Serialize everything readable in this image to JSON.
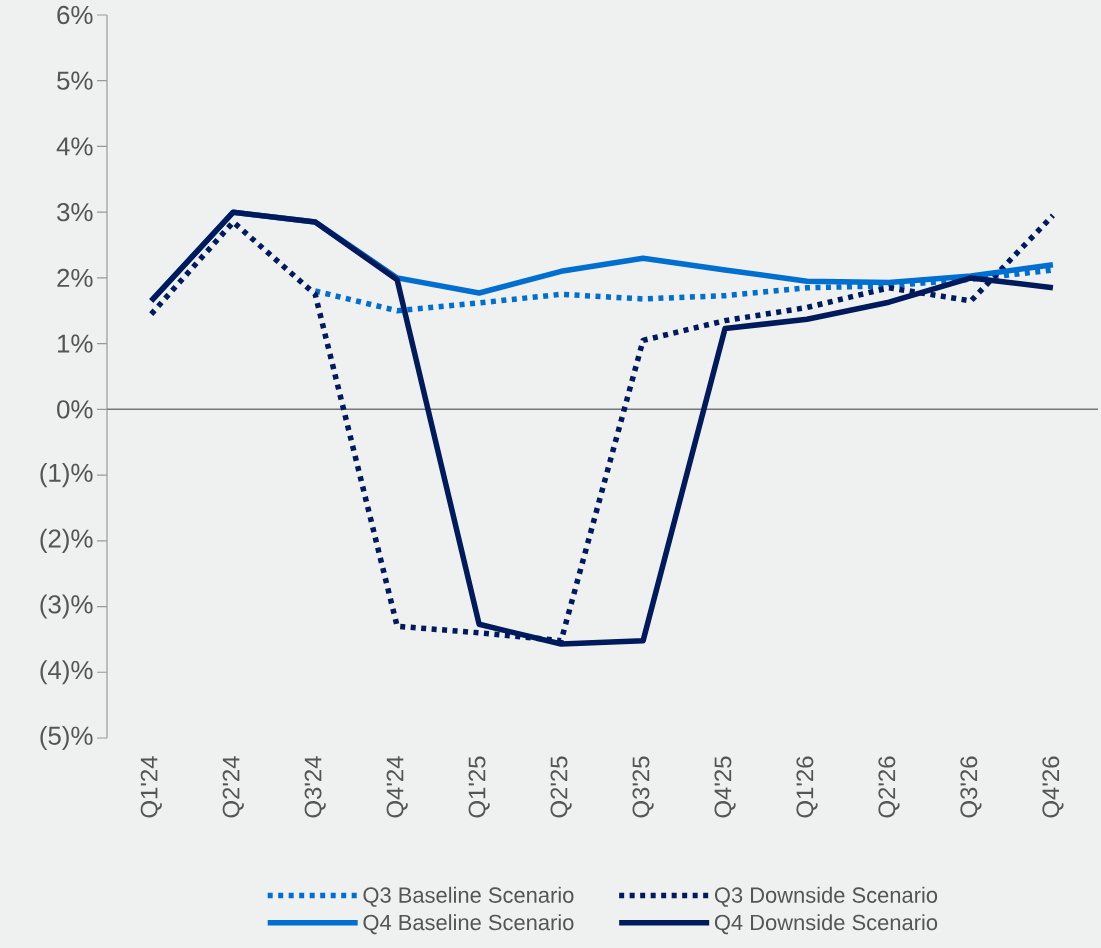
{
  "chart_data": {
    "type": "line",
    "categories": [
      "Q1'24",
      "Q2'24",
      "Q3'24",
      "Q4'24",
      "Q1'25",
      "Q2'25",
      "Q3'25",
      "Q4'25",
      "Q1'26",
      "Q2'26",
      "Q3'26",
      "Q4'26"
    ],
    "series": [
      {
        "name": "Q3 Baseline Scenario",
        "color": "#006fd0",
        "line_style": "dotted",
        "values": [
          null,
          null,
          1.8,
          1.5,
          1.62,
          1.75,
          1.68,
          1.73,
          1.85,
          1.88,
          1.98,
          2.12
        ]
      },
      {
        "name": "Q3 Downside Scenario",
        "color": "#001a5c",
        "line_style": "dotted",
        "values": [
          1.45,
          2.85,
          1.75,
          -3.3,
          -3.4,
          -3.52,
          1.05,
          1.35,
          1.55,
          1.85,
          1.65,
          2.95
        ]
      },
      {
        "name": "Q4 Baseline Scenario",
        "color": "#006fd0",
        "line_style": "solid",
        "values": [
          1.65,
          3.0,
          2.85,
          2.0,
          1.77,
          2.1,
          2.3,
          2.12,
          1.95,
          1.93,
          2.03,
          2.2
        ]
      },
      {
        "name": "Q4 Downside Scenario",
        "color": "#001a5c",
        "line_style": "solid",
        "values": [
          1.65,
          3.0,
          2.85,
          1.97,
          -3.27,
          -3.57,
          -3.52,
          1.23,
          1.37,
          1.63,
          2.0,
          1.85
        ]
      }
    ],
    "ylim": [
      -5,
      6
    ],
    "yticks": [
      {
        "value": -5,
        "label": "(5)%"
      },
      {
        "value": -4,
        "label": "(4)%"
      },
      {
        "value": -3,
        "label": "(3)%"
      },
      {
        "value": -2,
        "label": "(2)%"
      },
      {
        "value": -1,
        "label": "(1)%"
      },
      {
        "value": 0,
        "label": "0%"
      },
      {
        "value": 1,
        "label": "1%"
      },
      {
        "value": 2,
        "label": "2%"
      },
      {
        "value": 3,
        "label": "3%"
      },
      {
        "value": 4,
        "label": "4%"
      },
      {
        "value": 5,
        "label": "5%"
      },
      {
        "value": 6,
        "label": "6%"
      }
    ],
    "ref_lines": [
      {
        "axis": "y",
        "value": 0,
        "color": "#777777"
      }
    ],
    "grid": false,
    "legend": "bottom"
  }
}
